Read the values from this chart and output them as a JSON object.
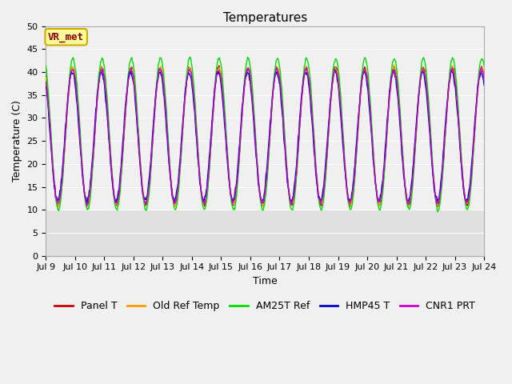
{
  "title": "Temperatures",
  "xlabel": "Time",
  "ylabel": "Temperature (C)",
  "annotation": "VR_met",
  "ylim": [
    0,
    50
  ],
  "yticks": [
    0,
    5,
    10,
    15,
    20,
    25,
    30,
    35,
    40,
    45,
    50
  ],
  "xtick_labels": [
    "Jul 9",
    "Jul 10",
    "Jul 11",
    "Jul 12",
    "Jul 13",
    "Jul 14",
    "Jul 15",
    "Jul 16",
    "Jul 17",
    "Jul 18",
    "Jul 19",
    "Jul 20",
    "Jul 21",
    "Jul 22",
    "Jul 23",
    "Jul 24"
  ],
  "series_colors": {
    "Panel T": "#cc0000",
    "Old Ref Temp": "#ff9900",
    "AM25T Ref": "#00dd00",
    "HMP45 T": "#0000cc",
    "CNR1 PRT": "#cc00cc"
  },
  "plot_bg_light": "#f0f0f0",
  "plot_bg_dark": "#e0e0e0",
  "grid_color": "#ffffff",
  "fig_bg": "#f0f0f0",
  "title_fontsize": 11,
  "axis_fontsize": 9,
  "tick_fontsize": 8,
  "legend_fontsize": 9,
  "annotation_bg": "#ffff99",
  "annotation_border": "#ccaa00",
  "annotation_text_color": "#880000"
}
